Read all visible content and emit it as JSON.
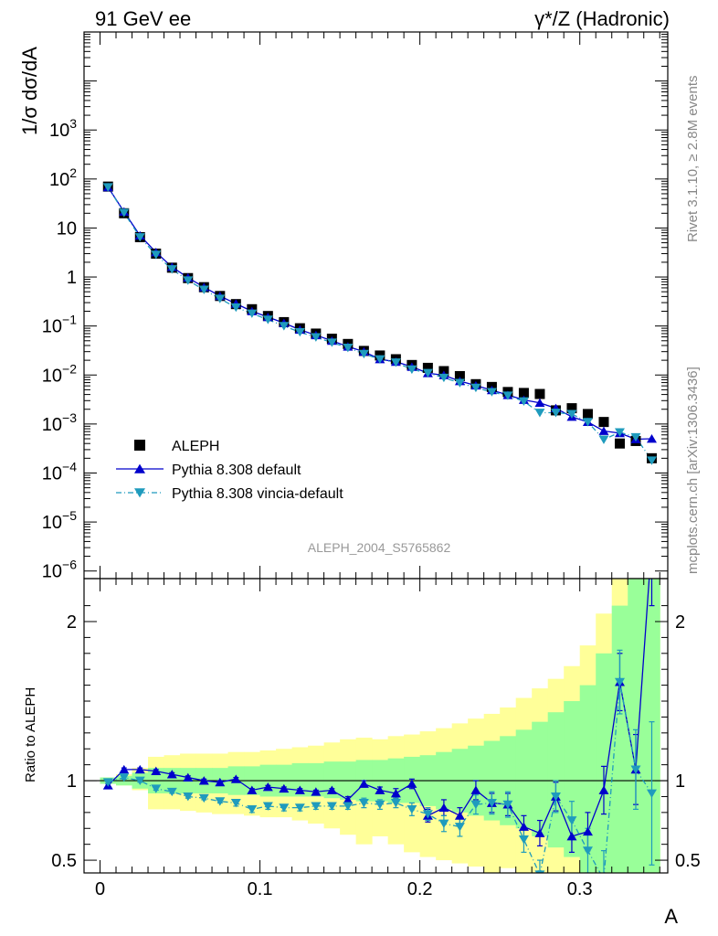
{
  "header": {
    "left": "91 GeV ee",
    "right": "γ*/Z (Hadronic)"
  },
  "side_labels": {
    "rivet": "Rivet 3.1.10, ≥ 2.8M events",
    "mcplots": "mcplots.cern.ch [arXiv:1306.3436]"
  },
  "analysis_tag": "ALEPH_2004_S5765862",
  "colors": {
    "data": "#000000",
    "default": "#0000cc",
    "vincia": "#1f9bbd",
    "band_green": "#99ff99",
    "band_yellow": "#ffff99"
  },
  "chart_data": [
    {
      "type": "scatter",
      "title": "",
      "ylabel": "1/σ  dσ/dA",
      "xlabel": "",
      "yscale": "log",
      "xlim": [
        -0.01,
        0.355
      ],
      "ylim": [
        7e-07,
        100000.0
      ],
      "yticks": [
        {
          "value": 1e-06,
          "base": "10",
          "exp": "−6"
        },
        {
          "value": 1e-05,
          "base": "10",
          "exp": "−5"
        },
        {
          "value": 0.0001,
          "base": "10",
          "exp": "−4"
        },
        {
          "value": 0.001,
          "base": "10",
          "exp": "−3"
        },
        {
          "value": 0.01,
          "base": "10",
          "exp": "−2"
        },
        {
          "value": 0.1,
          "base": "10",
          "exp": "−1"
        },
        {
          "value": 1,
          "base": "1",
          "exp": ""
        },
        {
          "value": 10,
          "base": "10",
          "exp": ""
        },
        {
          "value": 100,
          "base": "10",
          "exp": "2"
        },
        {
          "value": 1000,
          "base": "10",
          "exp": "3"
        }
      ],
      "legend": {
        "position": "bottom-left",
        "entries": [
          "ALEPH",
          "Pythia 8.308 default",
          "Pythia 8.308 vincia-default"
        ]
      },
      "x": [
        0.005,
        0.015,
        0.025,
        0.035,
        0.045,
        0.055,
        0.065,
        0.075,
        0.085,
        0.095,
        0.105,
        0.115,
        0.125,
        0.135,
        0.145,
        0.155,
        0.165,
        0.175,
        0.185,
        0.195,
        0.205,
        0.215,
        0.225,
        0.235,
        0.245,
        0.255,
        0.265,
        0.275,
        0.285,
        0.295,
        0.305,
        0.315,
        0.325,
        0.335,
        0.345
      ],
      "series": [
        {
          "name": "ALEPH",
          "values": [
            70,
            20,
            6.5,
            3.0,
            1.55,
            0.95,
            0.62,
            0.41,
            0.28,
            0.22,
            0.16,
            0.12,
            0.09,
            0.07,
            0.055,
            0.043,
            0.031,
            0.025,
            0.021,
            0.016,
            0.014,
            0.012,
            0.0095,
            0.0065,
            0.0057,
            0.0045,
            0.0043,
            0.0041,
            0.0019,
            0.0021,
            0.0016,
            0.0011,
            0.0004,
            0.00045,
            0.0002
          ]
        },
        {
          "name": "Pythia 8.308 default",
          "values": [
            68,
            21.5,
            7.0,
            3.2,
            1.6,
            0.97,
            0.62,
            0.41,
            0.285,
            0.2,
            0.152,
            0.115,
            0.084,
            0.065,
            0.05,
            0.038,
            0.03,
            0.021,
            0.0186,
            0.0147,
            0.0109,
            0.0099,
            0.0075,
            0.0061,
            0.0049,
            0.0039,
            0.0031,
            0.0027,
            0.0021,
            0.0014,
            0.0011,
            0.00072,
            0.00065,
            0.00049,
            0.0005
          ]
        },
        {
          "name": "Pythia 8.308 vincia-default",
          "values": [
            68,
            20.5,
            6.5,
            2.85,
            1.44,
            0.85,
            0.55,
            0.36,
            0.24,
            0.18,
            0.135,
            0.1,
            0.075,
            0.059,
            0.046,
            0.036,
            0.027,
            0.021,
            0.018,
            0.013,
            0.011,
            0.0088,
            0.0069,
            0.0055,
            0.0045,
            0.0038,
            0.0029,
            0.0017,
            0.0017,
            0.0016,
            0.0011,
            0.00048,
            0.00068,
            0.00054,
            0.00018
          ]
        }
      ]
    },
    {
      "type": "line",
      "title": "",
      "ylabel": "Ratio to ALEPH",
      "xlabel": "A",
      "xlim": [
        -0.01,
        0.355
      ],
      "ylim": [
        0.42,
        2.27
      ],
      "yticks": [
        0.5,
        1,
        2
      ],
      "xticks": [
        0,
        0.1,
        0.2,
        0.3
      ],
      "reference_line": 1,
      "x": [
        0.005,
        0.015,
        0.025,
        0.035,
        0.045,
        0.055,
        0.065,
        0.075,
        0.085,
        0.095,
        0.105,
        0.115,
        0.125,
        0.135,
        0.145,
        0.155,
        0.165,
        0.175,
        0.185,
        0.195,
        0.205,
        0.215,
        0.225,
        0.235,
        0.245,
        0.255,
        0.265,
        0.275,
        0.285,
        0.295,
        0.305,
        0.315,
        0.325,
        0.335,
        0.345
      ],
      "bin_edges": [
        0,
        0.01,
        0.02,
        0.03,
        0.04,
        0.05,
        0.06,
        0.07,
        0.08,
        0.09,
        0.1,
        0.11,
        0.12,
        0.13,
        0.14,
        0.15,
        0.16,
        0.17,
        0.18,
        0.19,
        0.2,
        0.21,
        0.22,
        0.23,
        0.24,
        0.25,
        0.26,
        0.27,
        0.28,
        0.29,
        0.3,
        0.31,
        0.32,
        0.33,
        0.34,
        0.35
      ],
      "bands": {
        "green_lo": [
          0.98,
          0.97,
          0.95,
          0.92,
          0.92,
          0.92,
          0.92,
          0.92,
          0.91,
          0.91,
          0.9,
          0.9,
          0.9,
          0.9,
          0.89,
          0.88,
          0.87,
          0.87,
          0.86,
          0.86,
          0.84,
          0.82,
          0.8,
          0.78,
          0.75,
          0.72,
          0.7,
          0.65,
          0.58,
          0.52,
          0.35,
          0.35,
          0.35,
          0.35,
          0.35
        ],
        "green_hi": [
          1.02,
          1.03,
          1.05,
          1.08,
          1.08,
          1.08,
          1.08,
          1.08,
          1.09,
          1.09,
          1.1,
          1.1,
          1.11,
          1.11,
          1.12,
          1.12,
          1.13,
          1.13,
          1.14,
          1.15,
          1.16,
          1.18,
          1.2,
          1.22,
          1.25,
          1.28,
          1.32,
          1.37,
          1.43,
          1.5,
          1.6,
          1.8,
          2.1,
          2.4,
          2.4
        ],
        "yellow_lo": [
          0.98,
          0.97,
          0.94,
          0.82,
          0.82,
          0.81,
          0.8,
          0.79,
          0.79,
          0.78,
          0.77,
          0.77,
          0.75,
          0.73,
          0.7,
          0.66,
          0.6,
          0.65,
          0.6,
          0.55,
          0.52,
          0.5,
          0.48,
          0.46,
          0.41,
          0.45,
          0.35,
          0.35,
          0.35,
          0.35,
          0.35,
          0.35,
          0.35,
          0.35,
          0.35
        ],
        "yellow_hi": [
          1.02,
          1.04,
          1.08,
          1.15,
          1.16,
          1.17,
          1.17,
          1.17,
          1.18,
          1.18,
          1.19,
          1.2,
          1.21,
          1.22,
          1.24,
          1.26,
          1.27,
          1.26,
          1.28,
          1.29,
          1.31,
          1.33,
          1.36,
          1.39,
          1.42,
          1.46,
          1.52,
          1.58,
          1.64,
          1.72,
          1.85,
          2.05,
          2.4,
          2.4,
          2.4
        ]
      },
      "series": [
        {
          "name": "Pythia 8.308 default",
          "values": [
            0.97,
            1.07,
            1.07,
            1.06,
            1.04,
            1.02,
            1.0,
            0.99,
            1.01,
            0.94,
            0.96,
            0.95,
            0.94,
            0.93,
            0.94,
            0.88,
            0.98,
            0.94,
            0.92,
            0.98,
            0.78,
            0.83,
            0.78,
            0.94,
            0.86,
            0.85,
            0.71,
            0.67,
            0.9,
            0.65,
            0.68,
            0.94,
            1.62,
            1.07,
            2.5
          ],
          "errors": [
            0.01,
            0.01,
            0.01,
            0.01,
            0.01,
            0.01,
            0.01,
            0.01,
            0.01,
            0.01,
            0.01,
            0.01,
            0.01,
            0.01,
            0.01,
            0.02,
            0.02,
            0.02,
            0.03,
            0.03,
            0.04,
            0.05,
            0.05,
            0.06,
            0.06,
            0.07,
            0.07,
            0.08,
            0.09,
            0.1,
            0.12,
            0.15,
            0.18,
            0.22,
            0.4
          ]
        },
        {
          "name": "Pythia 8.308 vincia-default",
          "values": [
            0.99,
            1.02,
            1.0,
            0.95,
            0.93,
            0.9,
            0.89,
            0.87,
            0.86,
            0.82,
            0.84,
            0.83,
            0.83,
            0.84,
            0.84,
            0.84,
            0.86,
            0.85,
            0.86,
            0.82,
            0.79,
            0.73,
            0.71,
            0.85,
            0.86,
            0.85,
            0.63,
            0.41,
            0.9,
            0.75,
            0.56,
            0.38,
            1.62,
            1.07,
            0.92
          ],
          "errors": [
            0.01,
            0.01,
            0.01,
            0.01,
            0.01,
            0.01,
            0.01,
            0.01,
            0.02,
            0.02,
            0.02,
            0.02,
            0.02,
            0.02,
            0.02,
            0.02,
            0.03,
            0.03,
            0.03,
            0.04,
            0.04,
            0.05,
            0.06,
            0.06,
            0.07,
            0.08,
            0.08,
            0.09,
            0.1,
            0.12,
            0.14,
            0.18,
            0.2,
            0.25,
            0.45
          ]
        }
      ]
    }
  ]
}
